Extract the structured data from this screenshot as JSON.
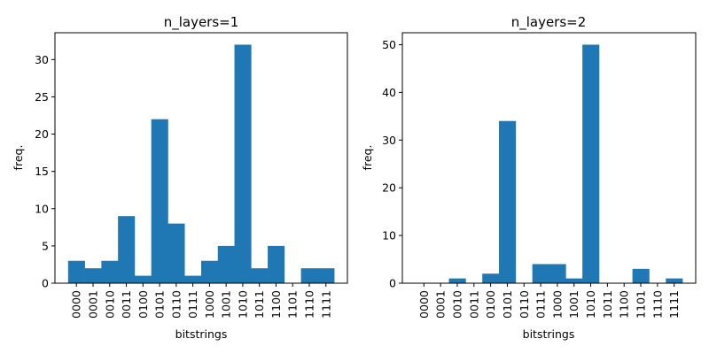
{
  "chart_data": [
    {
      "type": "bar",
      "title": "n_layers=1",
      "xlabel": "bitstrings",
      "ylabel": "freq.",
      "color": "#1f77b4",
      "categories": [
        "0000",
        "0001",
        "0010",
        "0011",
        "0100",
        "0101",
        "0110",
        "0111",
        "1000",
        "1001",
        "1010",
        "1011",
        "1100",
        "1101",
        "1110",
        "1111"
      ],
      "values": [
        3,
        2,
        3,
        9,
        1,
        22,
        8,
        1,
        3,
        5,
        32,
        2,
        5,
        0,
        2,
        2
      ],
      "ylim": [
        0,
        33.6
      ],
      "yticks": [
        0,
        5,
        10,
        15,
        20,
        25,
        30
      ],
      "grid": false
    },
    {
      "type": "bar",
      "title": "n_layers=2",
      "xlabel": "bitstrings",
      "ylabel": "freq.",
      "color": "#1f77b4",
      "categories": [
        "0000",
        "0001",
        "0010",
        "0011",
        "0100",
        "0101",
        "0110",
        "0111",
        "1000",
        "1001",
        "1010",
        "1011",
        "1100",
        "1101",
        "1110",
        "1111"
      ],
      "values": [
        0,
        0,
        1,
        0,
        2,
        34,
        0,
        4,
        4,
        1,
        50,
        0,
        0,
        3,
        0,
        1
      ],
      "ylim": [
        0,
        52.5
      ],
      "yticks": [
        0,
        10,
        20,
        30,
        40,
        50
      ],
      "grid": false
    }
  ]
}
